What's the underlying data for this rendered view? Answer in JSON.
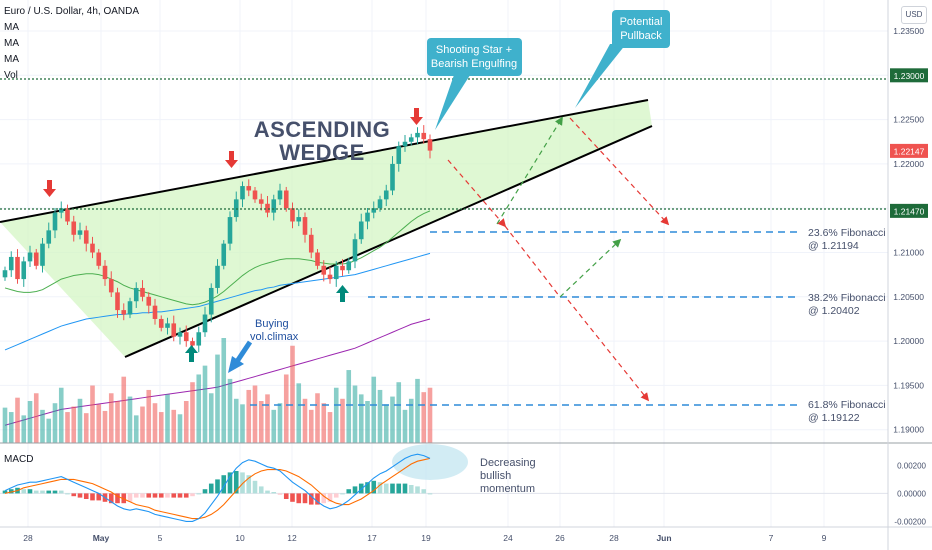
{
  "header": {
    "title": "Euro / U.S. Dollar, 4h, OANDA",
    "indicators": [
      "MA",
      "MA",
      "MA",
      "Vol"
    ]
  },
  "currency_button": "USD",
  "subpanel": {
    "label": "MACD"
  },
  "annotations": {
    "wedge_line1": "ASCENDING",
    "wedge_line2": "WEDGE",
    "shooting_star_line1": "Shooting Star +",
    "shooting_star_line2": "Bearish Engulfing",
    "pullback_line1": "Potential",
    "pullback_line2": "Pullback",
    "buying_line1": "Buying",
    "buying_line2": "vol.climax",
    "momentum_line1": "Decreasing",
    "momentum_line2": "bullish",
    "momentum_line3": "momentum"
  },
  "fib_levels": [
    {
      "label": "23.6% Fibonacci",
      "value_label": "@ 1.21194",
      "price": 1.21194
    },
    {
      "label": "38.2% Fibonacci",
      "value_label": "@ 1.20402",
      "price": 1.20402
    },
    {
      "label": "61.8% Fibonacci",
      "value_label": "@ 1.19122",
      "price": 1.19122
    }
  ],
  "price_tags": [
    {
      "text": "1.23000",
      "price": 1.23,
      "color": "#1e6b3a"
    },
    {
      "text": "1.22147",
      "price": 1.22147,
      "color": "#ef5350"
    },
    {
      "text": "1.21470",
      "price": 1.2147,
      "color": "#1e6b3a"
    }
  ],
  "colors": {
    "up": "#26a69a",
    "down": "#ef5350",
    "wedge_fill": "#d4f5c4",
    "fib_line": "#2f8bd8",
    "ma_green": "#4caf50",
    "ma_blue": "#2196f3",
    "ma_purple": "#9c27b0",
    "callout": "#3fb1cc",
    "macd_line": "#2196f3",
    "signal_line": "#ff6d00"
  },
  "chart_data": {
    "type": "candlestick",
    "price_axis": {
      "ylim": [
        1.1885,
        1.2385
      ],
      "ticks": [
        "1.23500",
        "1.23000",
        "1.22500",
        "1.22000",
        "1.21500",
        "1.21000",
        "1.20500",
        "1.20000",
        "1.19500",
        "1.19000"
      ]
    },
    "macd_axis": {
      "ylim": [
        -0.0024,
        0.0036
      ],
      "ticks": [
        "0.00200",
        "0.00000",
        "-0.00200"
      ]
    },
    "time_axis": [
      "28",
      "May",
      "5",
      "10",
      "12",
      "17",
      "19",
      "24",
      "26",
      "28",
      "Jun",
      "7",
      "9"
    ],
    "price_path": [
      1.208,
      1.2095,
      1.207,
      1.209,
      1.21,
      1.2085,
      1.211,
      1.2125,
      1.2145,
      1.215,
      1.2135,
      1.212,
      1.2125,
      1.211,
      1.21,
      1.2085,
      1.207,
      1.2055,
      1.2035,
      1.203,
      1.2045,
      1.206,
      1.205,
      1.204,
      1.2025,
      1.2015,
      1.202,
      1.2005,
      1.201,
      1.2,
      1.1995,
      1.201,
      1.203,
      1.206,
      1.2085,
      1.211,
      1.214,
      1.216,
      1.2175,
      1.217,
      1.216,
      1.2155,
      1.2145,
      1.216,
      1.217,
      1.215,
      1.2135,
      1.214,
      1.212,
      1.21,
      1.2085,
      1.2075,
      1.207,
      1.2085,
      1.208,
      1.209,
      1.2115,
      1.2135,
      1.2145,
      1.215,
      1.216,
      1.217,
      1.22,
      1.222,
      1.2225,
      1.223,
      1.2235,
      1.2228,
      1.2215
    ],
    "volume": [
      32,
      28,
      41,
      25,
      38,
      45,
      30,
      22,
      36,
      50,
      28,
      33,
      40,
      27,
      52,
      35,
      29,
      45,
      38,
      60,
      42,
      25,
      33,
      48,
      36,
      28,
      44,
      30,
      26,
      38,
      55,
      62,
      70,
      45,
      80,
      95,
      58,
      40,
      35,
      48,
      52,
      38,
      44,
      30,
      36,
      62,
      88,
      54,
      40,
      30,
      45,
      36,
      28,
      50,
      40,
      66,
      52,
      44,
      38,
      60,
      48,
      35,
      42,
      55,
      30,
      40,
      58,
      46,
      50
    ],
    "ma_green": [
      1.206,
      1.2058,
      1.2056,
      1.2055,
      1.2055,
      1.2056,
      1.2058,
      1.2062,
      1.2066,
      1.207,
      1.2072,
      1.2074,
      1.2075,
      1.2076,
      1.2076,
      1.2075,
      1.2073,
      1.207,
      1.2067,
      1.2063,
      1.206,
      1.2058,
      1.2056,
      1.2054,
      1.2052,
      1.205,
      1.2048,
      1.2046,
      1.2044,
      1.2042,
      1.2041,
      1.2042,
      1.2044,
      1.2047,
      1.2051,
      1.2056,
      1.2062,
      1.2068,
      1.2074,
      1.2079,
      1.2083,
      1.2086,
      1.2088,
      1.209,
      1.2092,
      1.2093,
      1.2093,
      1.2093,
      1.2092,
      1.2091,
      1.2089,
      1.2088,
      1.2087,
      1.2087,
      1.2087,
      1.2088,
      1.2091,
      1.2094,
      1.2098,
      1.2102,
      1.2106,
      1.2111,
      1.2117,
      1.2123,
      1.2129,
      1.2135,
      1.214,
      1.2144,
      1.2147
    ],
    "ma_blue": [
      1.199,
      1.1993,
      1.1996,
      1.1999,
      1.2002,
      1.2005,
      1.2008,
      1.2011,
      1.2014,
      1.2017,
      1.2019,
      1.2021,
      1.2023,
      1.2025,
      1.2026,
      1.2027,
      1.2028,
      1.2029,
      1.203,
      1.203,
      1.2031,
      1.2031,
      1.2032,
      1.2032,
      1.2033,
      1.2033,
      1.2034,
      1.2035,
      1.2036,
      1.2037,
      1.2038,
      1.2039,
      1.2041,
      1.2043,
      1.2045,
      1.2047,
      1.2049,
      1.2051,
      1.2053,
      1.2055,
      1.2057,
      1.2058,
      1.206,
      1.2061,
      1.2063,
      1.2064,
      1.2065,
      1.2066,
      1.2067,
      1.2068,
      1.2069,
      1.207,
      1.2071,
      1.2072,
      1.2073,
      1.2074,
      1.2075,
      1.2077,
      1.2079,
      1.2081,
      1.2083,
      1.2085,
      1.2087,
      1.2089,
      1.2091,
      1.2093,
      1.2095,
      1.2097,
      1.2099
    ],
    "ma_purple": [
      1.1905,
      1.1907,
      1.1909,
      1.1911,
      1.1913,
      1.1915,
      1.1917,
      1.1919,
      1.1921,
      1.1923,
      1.1924,
      1.1925,
      1.1926,
      1.1927,
      1.1928,
      1.1929,
      1.193,
      1.1931,
      1.1932,
      1.1933,
      1.1934,
      1.1935,
      1.1936,
      1.1937,
      1.1938,
      1.1939,
      1.194,
      1.1941,
      1.1942,
      1.1943,
      1.1944,
      1.1945,
      1.1946,
      1.1947,
      1.1948,
      1.195,
      1.1952,
      1.1954,
      1.1956,
      1.1958,
      1.196,
      1.1962,
      1.1964,
      1.1966,
      1.1968,
      1.197,
      1.1972,
      1.1974,
      1.1976,
      1.1978,
      1.198,
      1.1982,
      1.1984,
      1.1986,
      1.1988,
      1.199,
      1.1992,
      1.1995,
      1.1998,
      1.2001,
      1.2004,
      1.2007,
      1.201,
      1.2013,
      1.2016,
      1.2019,
      1.2021,
      1.2023,
      1.2025
    ],
    "macd_line": [
      0.0002,
      0.0004,
      0.0006,
      0.0007,
      0.0008,
      0.0008,
      0.0009,
      0.001,
      0.0011,
      0.0012,
      0.001,
      0.0008,
      0.0006,
      0.0004,
      0.0002,
      0.0,
      -0.0003,
      -0.0006,
      -0.0009,
      -0.0011,
      -0.0012,
      -0.0011,
      -0.0012,
      -0.0013,
      -0.0015,
      -0.0016,
      -0.0017,
      -0.0018,
      -0.0019,
      -0.002,
      -0.002,
      -0.0018,
      -0.0014,
      -0.0008,
      -0.0002,
      0.0005,
      0.0012,
      0.0018,
      0.0022,
      0.0024,
      0.0023,
      0.0021,
      0.0019,
      0.0018,
      0.0016,
      0.0012,
      0.0008,
      0.0005,
      0.0002,
      -0.0002,
      -0.0006,
      -0.0009,
      -0.0011,
      -0.001,
      -0.0008,
      -0.0005,
      -0.0001,
      0.0003,
      0.0007,
      0.0011,
      0.0014,
      0.0016,
      0.0019,
      0.0022,
      0.0025,
      0.0027,
      0.0028,
      0.0027,
      0.0025
    ],
    "signal_line": [
      0.0,
      0.0001,
      0.0002,
      0.0004,
      0.0005,
      0.0006,
      0.0007,
      0.0008,
      0.0009,
      0.001,
      0.001,
      0.001,
      0.0009,
      0.0008,
      0.0007,
      0.0005,
      0.0003,
      0.0001,
      -0.0002,
      -0.0004,
      -0.0006,
      -0.0008,
      -0.0009,
      -0.001,
      -0.0012,
      -0.0013,
      -0.0014,
      -0.0015,
      -0.0016,
      -0.0017,
      -0.0018,
      -0.0018,
      -0.0017,
      -0.0015,
      -0.0012,
      -0.0008,
      -0.0003,
      0.0002,
      0.0007,
      0.0011,
      0.0014,
      0.0016,
      0.0017,
      0.0017,
      0.0017,
      0.0016,
      0.0014,
      0.0012,
      0.0009,
      0.0006,
      0.0002,
      -0.0002,
      -0.0005,
      -0.0007,
      -0.0008,
      -0.0008,
      -0.0006,
      -0.0004,
      -0.0001,
      0.0002,
      0.0006,
      0.0009,
      0.0012,
      0.0015,
      0.0018,
      0.0021,
      0.0023,
      0.0024,
      0.0025
    ]
  }
}
